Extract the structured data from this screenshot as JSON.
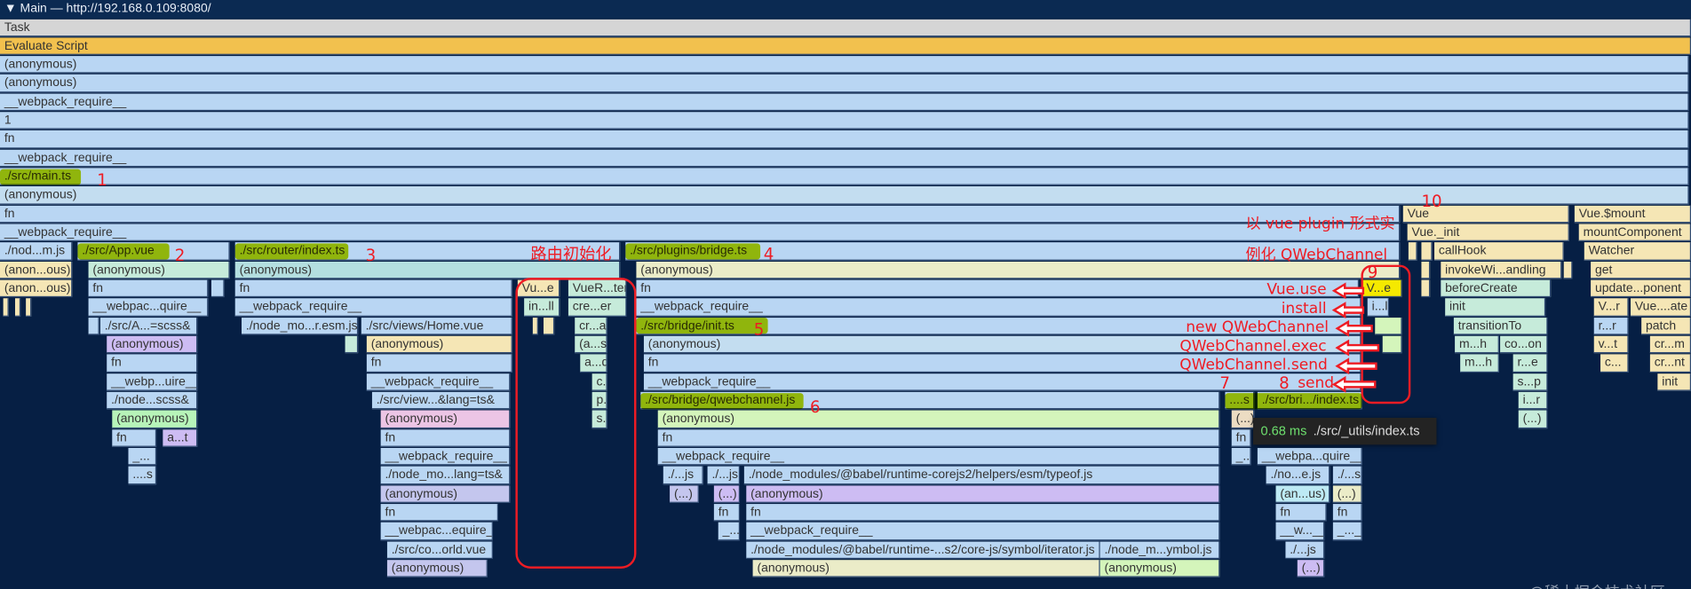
{
  "track": {
    "title": "▼ Main — http://192.168.0.109:8080/"
  },
  "colors": {
    "background": "#061f44",
    "task": "#d5d5d5",
    "evaluate": "#f2c14e",
    "blue": "#b9d6f3",
    "lightblue": "#c3ddf0",
    "yellow": "#f5e6b5",
    "mint": "#c6ebda",
    "teal": "#b4dfe0",
    "paleyellow": "#ebecc8",
    "green": "#b7f4b9",
    "lightgreen": "#d4f5bb",
    "purple": "#cdbcf3",
    "pink": "#ecc5e5",
    "lavender": "#c4c6ee",
    "tan": "#ecdcc3",
    "cyan": "#bdeaf4",
    "highlight": "#c4d600",
    "highlight_yellow": "#f5e900",
    "annotation": "#ee1c24",
    "tooltip_ms": "#6ee06e"
  },
  "flame": {
    "frames": [
      "Task",
      "Evaluate Script",
      "(anonymous)",
      "(anonymous)",
      "__webpack_require__",
      "1",
      "fn",
      "__webpack_require__",
      "./src/main.ts",
      "(anonymous)",
      "fn",
      "Vue",
      "Vue.$mount",
      "__webpack_require__",
      "Vue._init",
      "mountComponent",
      "./nod...m.js",
      "./src/App.vue",
      "./src/router/index.ts",
      "./src/plugins/bridge.ts",
      "callHook",
      "Watcher",
      "(anon...ous)",
      "(anonymous)",
      "(anonymous)",
      "(anonymous)",
      "invokeWi...andling",
      "get",
      "(anon...ous)",
      "fn",
      "fn",
      "Vu...e",
      "VueR...ter",
      "fn",
      "V...e",
      "beforeCreate",
      "update...ponent",
      "__webpac...quire__",
      "__webpack_require__",
      "in...ll",
      "cre...er",
      "__webpack_require__",
      "i...l",
      "init",
      "V...r",
      "Vue....ate",
      "./src/A...=scss&",
      "./node_mo...r.esm.js",
      "./src/views/Home.vue",
      "cr...ap",
      "./src/bridge/init.ts",
      "transitionTo",
      "r...r",
      "patch",
      "(anonymous)",
      "(anonymous)",
      "(a...s)",
      "(anonymous)",
      "m...h",
      "co...on",
      "v...t",
      "cr...m",
      "fn",
      "fn",
      "a...d",
      "fn",
      "m...h",
      "r...e",
      "c...",
      "cr...nt",
      "__webp...uire__",
      "__webpack_require__",
      "c...",
      "__webpack_require__",
      "s...p",
      "init",
      "./node...scss&",
      "./src/view...&lang=ts&",
      "p...",
      "./src/bridge/qwebchannel.js",
      "....s",
      "./src/bri.../index.ts",
      "i...r",
      "(anonymous)",
      "(anonymous)",
      "s...",
      "(anonymous)",
      "(...)",
      "(...)",
      "fn",
      "a...t",
      "fn",
      "fn",
      "fn",
      "_...",
      "__webpack_require__",
      "__webpack_require__",
      "_...",
      "__webpa...quire__",
      "....s",
      "./node_mo...lang=ts&",
      "./...js",
      "./...js",
      "./node_modules/@babel/runtime-corejs2/helpers/esm/typeof.js",
      "./no...e.js",
      "./...s",
      "(anonymous)",
      "(...)",
      "(...)",
      "(anonymous)",
      "(an...us)",
      "(...)",
      "fn",
      "fn",
      "fn",
      "fn",
      "fn",
      "__webpac...equire__",
      "_...",
      "__webpack_require__",
      "__w...__",
      "_..._",
      "./src/co...orld.vue",
      "./node_modules/@babel/runtime-...s2/core-js/symbol/iterator.js",
      "./node_m...ymbol.js",
      "./...js",
      "(anonymous)",
      "(anonymous)",
      "(anonymous)",
      "(...)"
    ]
  },
  "annotations": {
    "numbers": [
      "1",
      "2",
      "3",
      "4",
      "5",
      "6",
      "7",
      "8",
      "9",
      "10"
    ],
    "router_init": "路由初始化",
    "plugin_note_line1": "以 vue plugin 形式实",
    "plugin_note_line2": "例化 QWebChannel",
    "call_labels": [
      "Vue.use",
      "install",
      "new QWebChannel",
      "QWebChannel.exec",
      "QWebChannel.send",
      "send"
    ]
  },
  "tooltip": {
    "duration": "0.68 ms",
    "name": "./src/_utils/index.ts"
  },
  "watermark": "@稀土掘金技术社区"
}
